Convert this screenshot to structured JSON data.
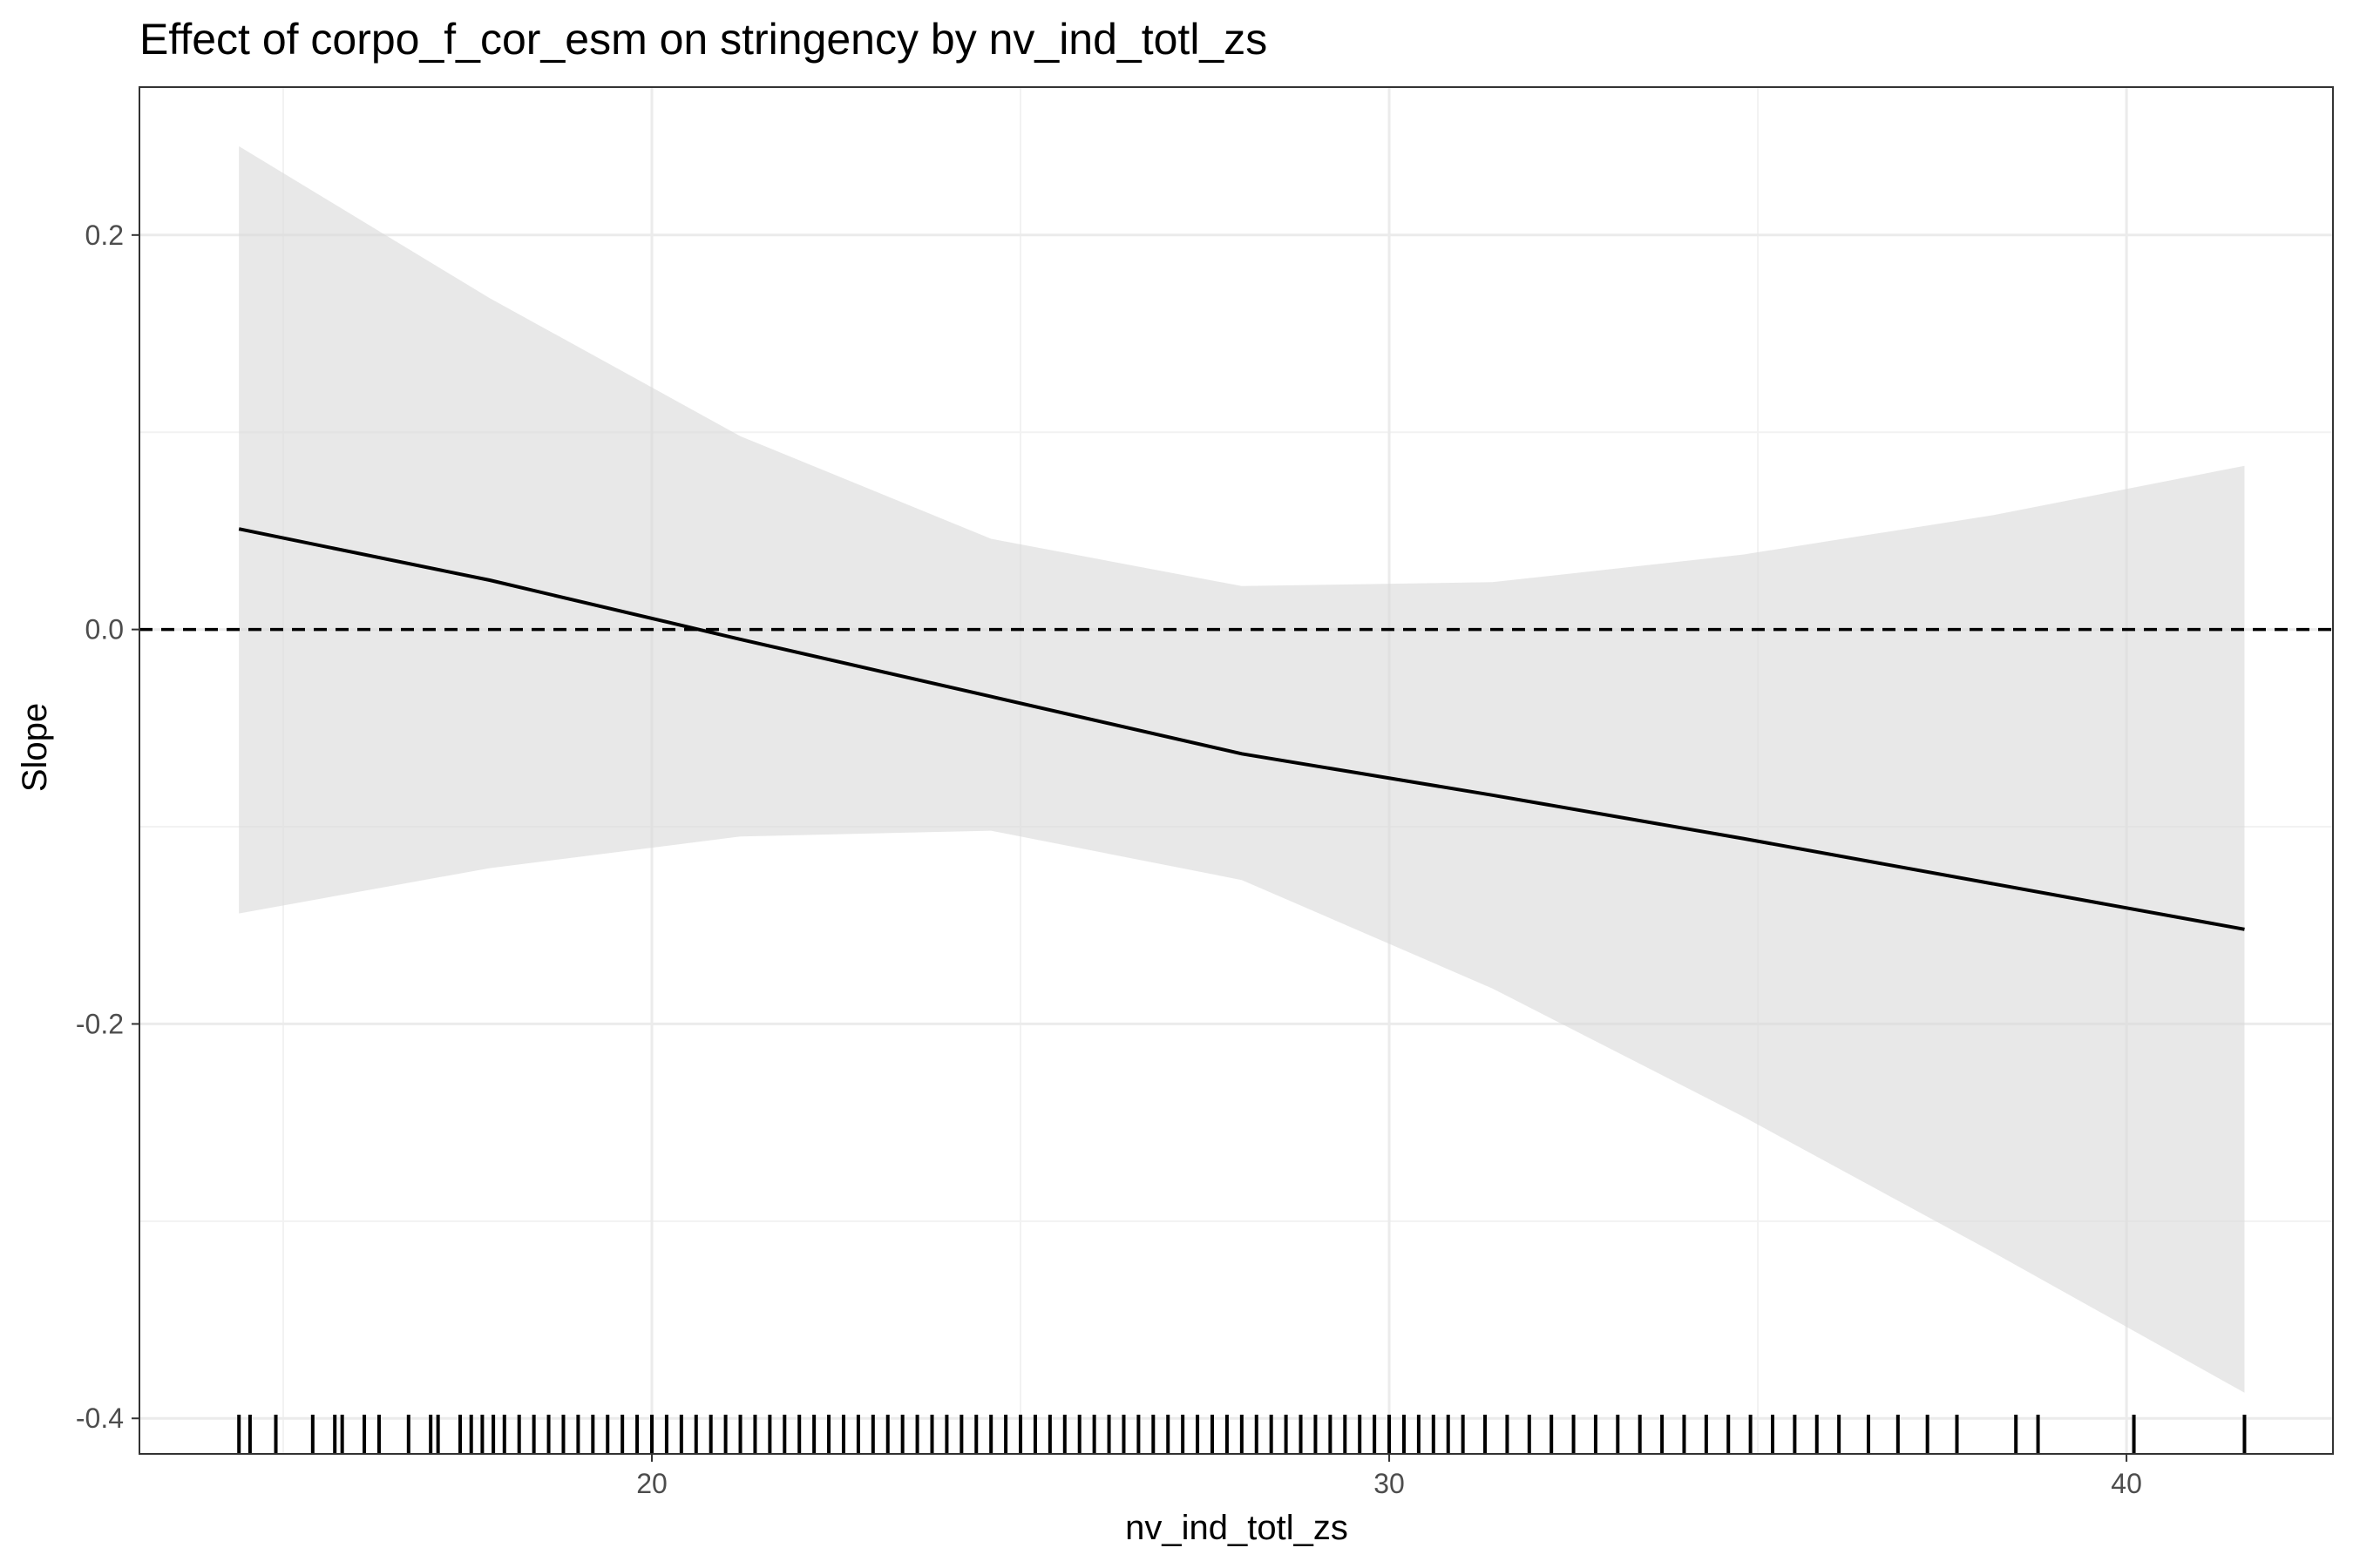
{
  "chart_data": {
    "type": "line",
    "title": "Effect of corpo_f_cor_esm on stringency by nv_ind_totl_zs",
    "xlabel": "nv_ind_totl_zs",
    "ylabel": "Slope",
    "xlim": [
      13.05,
      42.8
    ],
    "ylim": [
      -0.418,
      0.275
    ],
    "x_ticks": [
      20,
      30,
      40
    ],
    "x_tick_labels": [
      "20",
      "30",
      "40"
    ],
    "y_ticks": [
      -0.4,
      -0.2,
      0.0,
      0.2
    ],
    "y_tick_labels": [
      "-0.4",
      "-0.2",
      "0.0",
      "0.2"
    ],
    "grid": true,
    "reference_line": {
      "y": 0,
      "style": "dashed"
    },
    "series": [
      {
        "x": [
          14.4,
          17.8,
          21.2,
          24.6,
          28.0,
          31.4,
          34.8,
          38.2,
          41.6
        ],
        "y": [
          0.051,
          0.025,
          -0.005,
          -0.034,
          -0.063,
          -0.084,
          -0.106,
          -0.129,
          -0.152
        ]
      }
    ],
    "band": {
      "x": [
        14.4,
        17.8,
        21.2,
        24.6,
        28.0,
        31.4,
        34.8,
        38.2,
        41.6
      ],
      "upper": [
        0.245,
        0.168,
        0.098,
        0.046,
        0.022,
        0.024,
        0.038,
        0.058,
        0.083
      ],
      "lower": [
        -0.144,
        -0.121,
        -0.105,
        -0.102,
        -0.127,
        -0.182,
        -0.247,
        -0.316,
        -0.387
      ]
    },
    "rug_x": [
      14.4,
      14.55,
      14.9,
      15.4,
      15.7,
      15.8,
      16.1,
      16.3,
      16.7,
      17.0,
      17.1,
      17.4,
      17.55,
      17.7,
      17.85,
      18.0,
      18.2,
      18.4,
      18.6,
      18.8,
      19.0,
      19.2,
      19.4,
      19.6,
      19.8,
      20.0,
      20.2,
      20.4,
      20.6,
      20.8,
      21.0,
      21.2,
      21.4,
      21.6,
      21.8,
      22.0,
      22.2,
      22.4,
      22.6,
      22.8,
      23.0,
      23.2,
      23.4,
      23.6,
      23.8,
      24.0,
      24.2,
      24.4,
      24.6,
      24.8,
      25.0,
      25.2,
      25.4,
      25.6,
      25.8,
      26.0,
      26.2,
      26.4,
      26.6,
      26.8,
      27.0,
      27.2,
      27.4,
      27.6,
      27.8,
      28.0,
      28.2,
      28.4,
      28.6,
      28.8,
      29.0,
      29.2,
      29.4,
      29.6,
      29.8,
      30.0,
      30.2,
      30.4,
      30.6,
      30.8,
      31.0,
      31.3,
      31.6,
      31.9,
      32.2,
      32.5,
      32.8,
      33.1,
      33.4,
      33.7,
      34.0,
      34.3,
      34.6,
      34.9,
      35.2,
      35.5,
      35.8,
      36.1,
      36.5,
      36.9,
      37.3,
      37.7,
      38.5,
      38.8,
      40.1,
      41.6
    ]
  }
}
